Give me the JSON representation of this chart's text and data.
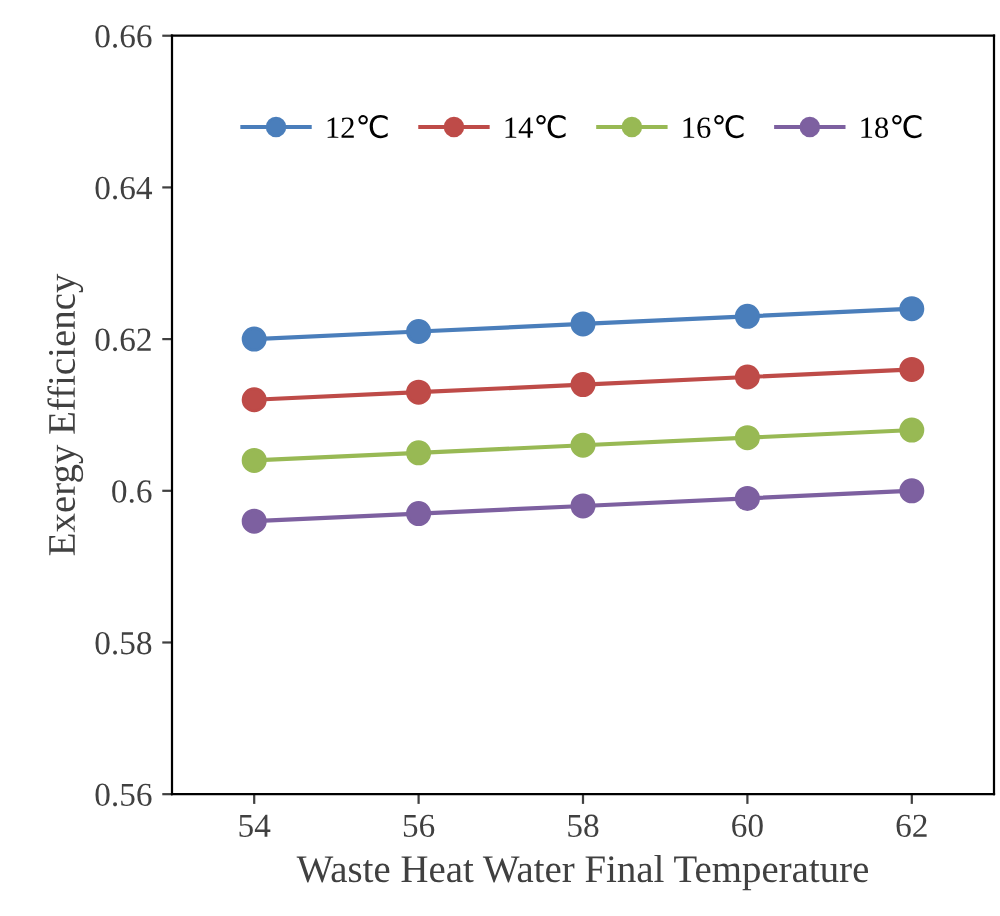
{
  "chart_data": {
    "type": "line",
    "xlabel": "Waste Heat Water Final Temperature",
    "ylabel": "Exergy Efficiency",
    "categories": [
      "54",
      "56",
      "58",
      "60",
      "62"
    ],
    "series": [
      {
        "name": "12℃",
        "color": "#4a7ebb",
        "values": [
          0.62,
          0.621,
          0.622,
          0.623,
          0.624
        ]
      },
      {
        "name": "14℃",
        "color": "#be4b48",
        "values": [
          0.612,
          0.613,
          0.614,
          0.615,
          0.616
        ]
      },
      {
        "name": "16℃",
        "color": "#98b954",
        "values": [
          0.604,
          0.605,
          0.606,
          0.607,
          0.608
        ]
      },
      {
        "name": "18℃",
        "color": "#7d60a0",
        "values": [
          0.596,
          0.597,
          0.598,
          0.599,
          0.6
        ]
      }
    ],
    "ylim": [
      0.56,
      0.66
    ],
    "yticks": [
      0.56,
      0.58,
      0.6,
      0.62,
      0.64,
      0.66
    ],
    "marker": "circle",
    "line_style": "solid",
    "legend": "top",
    "grid": false
  }
}
